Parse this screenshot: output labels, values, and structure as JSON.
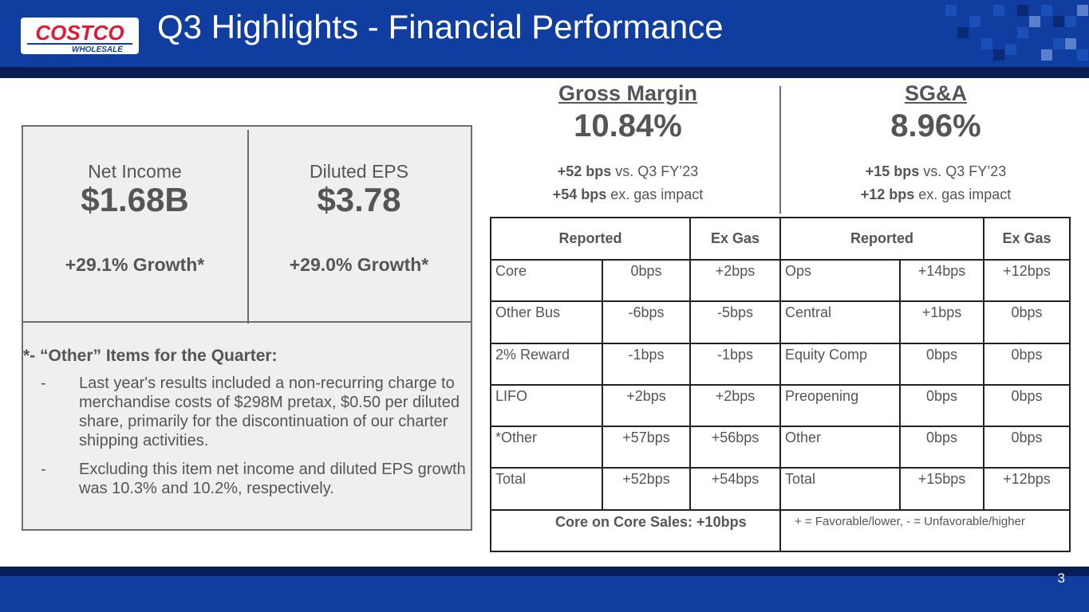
{
  "header": {
    "title": "Q3 Highlights - Financial Performance",
    "logo_text_top": "COSTCO",
    "logo_text_bottom": "WHOLESALE",
    "colors": {
      "primary": "#0f3ea0",
      "dark": "#0a1e55",
      "logo_red": "#e31837"
    }
  },
  "kpis": [
    {
      "label": "Net Income",
      "value": "$1.68B",
      "growth": "+29.1% Growth*"
    },
    {
      "label": "Diluted EPS",
      "value": "$3.78",
      "growth": "+29.0% Growth*"
    }
  ],
  "notes": {
    "heading": "*- “Other” Items for the Quarter:",
    "items": [
      {
        "dash": "-",
        "text": "Last year's results included a non-recurring charge to merchandise costs of $298M pretax, $0.50 per diluted share, primarily for the discontinuation of our charter shipping activities."
      },
      {
        "dash": "-",
        "text": "Excluding this item net income and diluted EPS growth was 10.3% and 10.2%, respectively."
      }
    ]
  },
  "gross_margin": {
    "heading": "Gross Margin",
    "value": "10.84%",
    "line1_bold": "+52 bps",
    "line1_rest": " vs. Q3 FY’23",
    "line2_bold": "+54 bps",
    "line2_rest": " ex. gas impact"
  },
  "sga": {
    "heading": "SG&A",
    "value": "8.96%",
    "line1_bold": "+15 bps",
    "line1_rest": " vs. Q3 FY’23",
    "line2_bold": "+12 bps",
    "line2_rest": " ex. gas impact"
  },
  "table": {
    "headers": [
      "Reported",
      "Ex Gas",
      "Reported",
      "Ex Gas"
    ],
    "rows": [
      [
        "Core",
        "0bps",
        "+2bps",
        "Ops",
        "+14bps",
        "+12bps"
      ],
      [
        "Other Bus",
        "-6bps",
        "-5bps",
        "Central",
        "+1bps",
        "0bps"
      ],
      [
        "2% Reward",
        "-1bps",
        "-1bps",
        "Equity Comp",
        "0bps",
        "0bps"
      ],
      [
        "LIFO",
        "+2bps",
        "+2bps",
        "Preopening",
        "0bps",
        "0bps"
      ],
      [
        "*Other",
        "+57bps",
        "+56bps",
        "Other",
        "0bps",
        "0bps"
      ],
      [
        "Total",
        "+52bps",
        "+54bps",
        "Total",
        "+15bps",
        "+12bps"
      ]
    ],
    "footer_left": "Core on Core Sales: +10bps",
    "footer_right": "+ = Favorable/lower, - = Unfavorable/higher"
  },
  "footer": {
    "page_number": "3"
  }
}
